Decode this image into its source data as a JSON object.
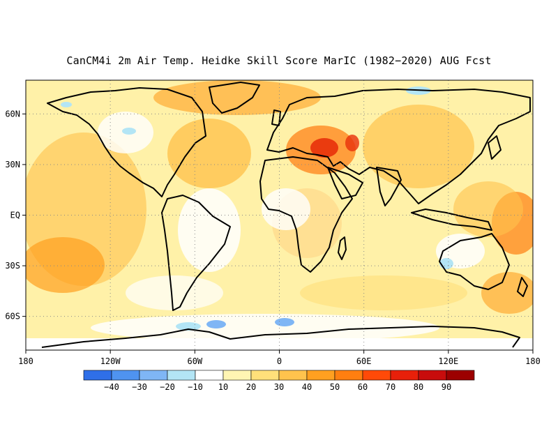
{
  "title": "CanCM4i 2m Air Temp. Heidke Skill Score MarIC (1982−2020) AUG Fcst",
  "map": {
    "lon_range": [
      -180,
      180
    ],
    "lat_range": [
      -80,
      80
    ],
    "lon_ticks": [
      {
        "value": -180,
        "label": "180"
      },
      {
        "value": -120,
        "label": "120W"
      },
      {
        "value": -60,
        "label": "60W"
      },
      {
        "value": 0,
        "label": "0"
      },
      {
        "value": 60,
        "label": "60E"
      },
      {
        "value": 120,
        "label": "120E"
      },
      {
        "value": 180,
        "label": "180"
      }
    ],
    "lat_ticks": [
      {
        "value": 60,
        "label": "60N"
      },
      {
        "value": 30,
        "label": "30N"
      },
      {
        "value": 0,
        "label": "EQ"
      },
      {
        "value": -30,
        "label": "30S"
      },
      {
        "value": -60,
        "label": "60S"
      }
    ],
    "gridlines": "dotted"
  },
  "colorbar": {
    "colors": [
      "#2f6fe8",
      "#4f93f0",
      "#7fb6f5",
      "#b3e5f5",
      "#ffffff",
      "#fff5b3",
      "#ffe07a",
      "#ffc34d",
      "#ffa020",
      "#ff7f10",
      "#ff4a08",
      "#e8200a",
      "#c80c0c",
      "#9c0000"
    ],
    "labels": [
      "−40",
      "−30",
      "−20",
      "−10",
      "10",
      "20",
      "30",
      "40",
      "50",
      "60",
      "70",
      "80",
      "90"
    ]
  }
}
